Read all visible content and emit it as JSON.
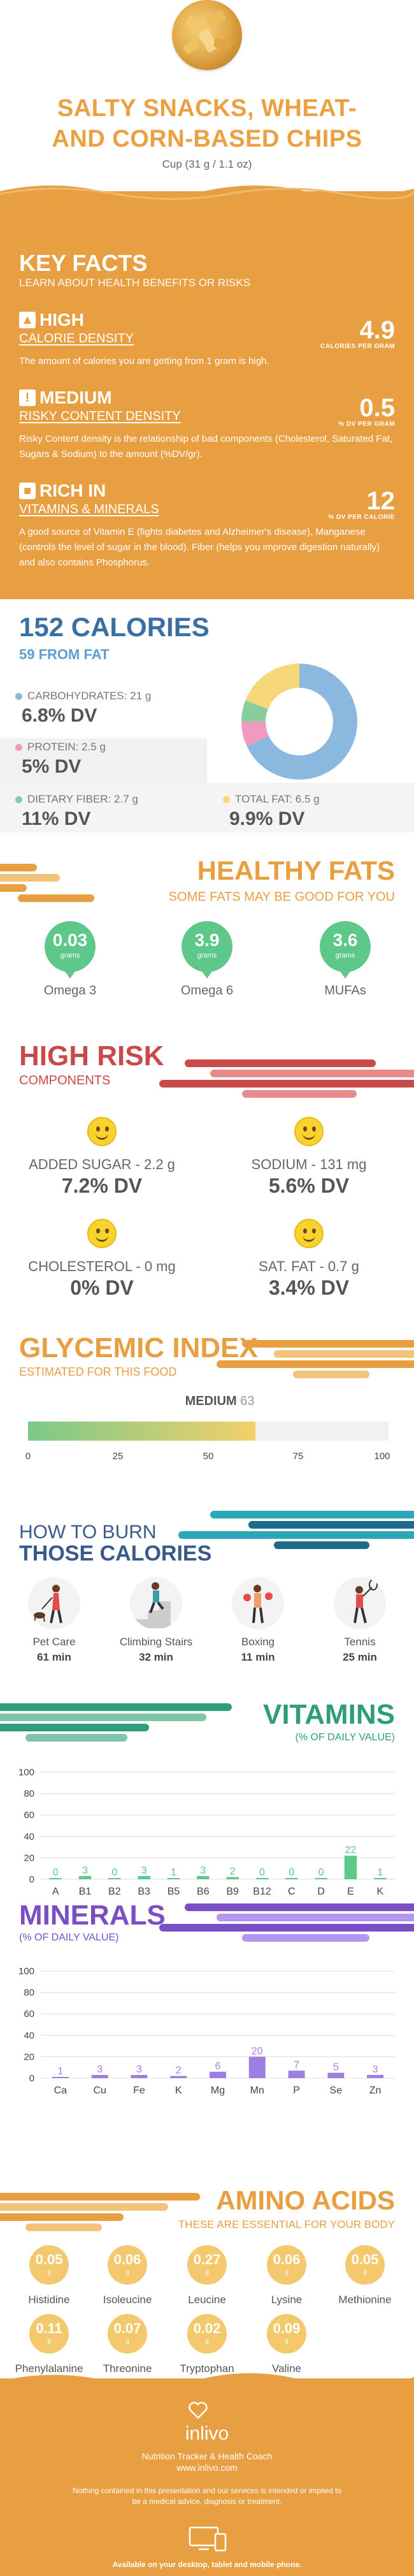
{
  "header": {
    "title_line1": "SALTY SNACKS, WHEAT-",
    "title_line2": "AND CORN-BASED CHIPS",
    "serving": "Cup (31 g / 1.1 oz)"
  },
  "key_facts": {
    "title": "KEY FACTS",
    "subtitle": "LEARN ABOUT HEALTH BENEFITS OR RISKS",
    "items": [
      {
        "level": "HIGH",
        "label": "CALORIE DENSITY",
        "value": "4.9",
        "unit": "CALORIES PER GRAM",
        "desc": "The amount of calories you are getting from 1 gram is high."
      },
      {
        "level": "MEDIUM",
        "label": "RISKY CONTENT DENSITY",
        "value": "0.5",
        "unit": "% DV PER GRAM",
        "desc": "Risky Content density is the relationship of bad components (Cholesterol, Saturated Fat, Sugars & Sodium) to the amount (%DV/gr)."
      },
      {
        "level": "RICH IN",
        "label": "VITAMINS & MINERALS",
        "value": "12",
        "unit": "% DV PER CALORIE",
        "desc": "A good source of Vitamin E (fights diabetes and Alzheimer's disease), Manganese (controls the level of sugar in the blood). Fiber (helps you improve digestion naturally) and also contains Phosphorus."
      }
    ]
  },
  "calories": {
    "title": "152 CALORIES",
    "subtitle": "59 FROM FAT",
    "nutrients": [
      {
        "label": "CARBOHYDRATES: 21 g",
        "dv": "6.8% DV",
        "color": "#8bb8df",
        "fraction": 0.68
      },
      {
        "label": "PROTEIN: 2.5 g",
        "dv": "5% DV",
        "color": "#f19ac0",
        "fraction": 0.07
      },
      {
        "label": "DIETARY FIBER: 2.7 g",
        "dv": "11% DV",
        "color": "#86cf9c",
        "fraction": 0.06
      },
      {
        "label": "TOTAL FAT: 6.5 g",
        "dv": "9.9% DV",
        "color": "#f6d77a",
        "fraction": 0.19
      }
    ]
  },
  "healthy_fats": {
    "title": "HEALTHY FATS",
    "subtitle": "SOME FATS MAY BE GOOD FOR YOU",
    "unit": "grams",
    "items": [
      {
        "value": "0.03",
        "name": "Omega 3"
      },
      {
        "value": "3.9",
        "name": "Omega 6"
      },
      {
        "value": "3.6",
        "name": "MUFAs"
      }
    ]
  },
  "high_risk": {
    "title": "HIGH RISK",
    "subtitle": "COMPONENTS",
    "items": [
      {
        "label": "ADDED SUGAR - 2.2 g",
        "dv": "7.2% DV",
        "face": "smile"
      },
      {
        "label": "SODIUM - 131 mg",
        "dv": "5.6% DV",
        "face": "smile"
      },
      {
        "label": "CHOLESTEROL - 0 mg",
        "dv": "0% DV",
        "face": "laugh"
      },
      {
        "label": "SAT. FAT - 0.7 g",
        "dv": "3.4% DV",
        "face": "smile"
      }
    ]
  },
  "glycemic": {
    "title": "GLYCEMIC INDEX",
    "subtitle": "ESTIMATED FOR THIS FOOD",
    "level": "MEDIUM",
    "value": "63",
    "value_num": 63,
    "ticks": [
      "0",
      "25",
      "50",
      "75",
      "100"
    ]
  },
  "burn": {
    "title1": "HOW TO BURN",
    "title2": "THOSE CALORIES",
    "activities": [
      {
        "name": "Pet Care",
        "minutes": "61 min",
        "icon": "pet-care-icon"
      },
      {
        "name": "Climbing Stairs",
        "minutes": "32 min",
        "icon": "stairs-icon"
      },
      {
        "name": "Boxing",
        "minutes": "11 min",
        "icon": "boxing-icon"
      },
      {
        "name": "Tennis",
        "minutes": "25 min",
        "icon": "tennis-icon"
      }
    ]
  },
  "vitamins": {
    "title": "VITAMINS",
    "subtitle": "(% OF DAILY VALUE)",
    "y_ticks": [
      "0",
      "20",
      "40",
      "60",
      "80",
      "100"
    ]
  },
  "minerals": {
    "title": "MINERALS",
    "subtitle": "(% OF DAILY VALUE)",
    "y_ticks": [
      "0",
      "20",
      "40",
      "60",
      "80",
      "100"
    ]
  },
  "chart_data": [
    {
      "type": "bar",
      "title": "VITAMINS",
      "ylabel": "(% OF DAILY VALUE)",
      "categories": [
        "A",
        "B1",
        "B2",
        "B3",
        "B5",
        "B6",
        "B9",
        "B12",
        "C",
        "D",
        "E",
        "K"
      ],
      "values": [
        0,
        3,
        0,
        3,
        1,
        3,
        2,
        0,
        0,
        0,
        22,
        1
      ],
      "ylim": [
        0,
        100
      ],
      "color": "#5ec78a"
    },
    {
      "type": "bar",
      "title": "MINERALS",
      "ylabel": "(% OF DAILY VALUE)",
      "categories": [
        "Ca",
        "Cu",
        "Fe",
        "K",
        "Mg",
        "Mn",
        "P",
        "Se",
        "Zn"
      ],
      "values": [
        1,
        3,
        3,
        2,
        6,
        20,
        7,
        5,
        3
      ],
      "ylim": [
        0,
        100
      ],
      "color": "#9c7fe0"
    },
    {
      "type": "pie",
      "title": "152 CALORIES",
      "categories": [
        "CARBOHYDRATES",
        "PROTEIN",
        "DIETARY FIBER",
        "TOTAL FAT"
      ],
      "values": [
        0.68,
        0.07,
        0.06,
        0.19
      ]
    }
  ],
  "amino_acids": {
    "title": "AMINO ACIDS",
    "subtitle": "THESE ARE ESSENTIAL FOR YOUR BODY",
    "unit": "g",
    "items": [
      {
        "value": "0.05",
        "name": "Histidine"
      },
      {
        "value": "0.06",
        "name": "Isoleucine"
      },
      {
        "value": "0.27",
        "name": "Leucine"
      },
      {
        "value": "0.06",
        "name": "Lysine"
      },
      {
        "value": "0.05",
        "name": "Methionine"
      },
      {
        "value": "0.11",
        "name": "Phenylalanine"
      },
      {
        "value": "0.07",
        "name": "Threonine"
      },
      {
        "value": "0.02",
        "name": "Tryptophan"
      },
      {
        "value": "0.09",
        "name": "Valine"
      }
    ]
  },
  "footer": {
    "brand": "inlivo",
    "tagline": "Nutrition Tracker & Health Coach",
    "url": "www.inlivo.com",
    "disclaimer": "Nothing contained in this presentation and our services is intended or implied to be a medical advice, diagnosis or treatment.",
    "available": "Available on your desktop, tablet and mobile phone."
  }
}
